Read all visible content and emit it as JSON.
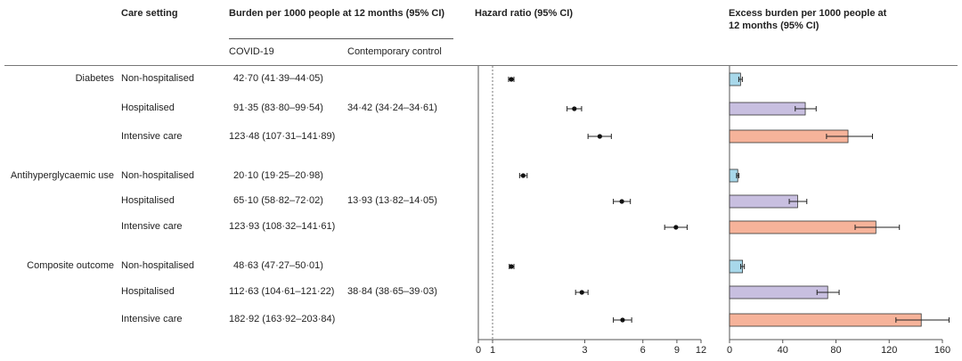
{
  "headers": {
    "care_setting": "Care setting",
    "burden": "Burden per 1000 people at  12 months (95% CI)",
    "covid": "COVID-19",
    "control": "Contemporary control",
    "hazard": "Hazard ratio (95% CI)",
    "excess_line1": "Excess burden per 1000 people at",
    "excess_line2": "12 months (95% CI)"
  },
  "groups": [
    {
      "name": "Diabetes",
      "control": "34·42 (34·24–34·61)",
      "rows": [
        {
          "setting": "Non-hospitalised",
          "covid": "42·70 (41·39–44·05)"
        },
        {
          "setting": "Hospitalised",
          "covid": "91·35 (83·80–99·54)"
        },
        {
          "setting": "Intensive care",
          "covid": "123·48 (107·31–141·89)"
        }
      ]
    },
    {
      "name": "Antihyperglycaemic use",
      "control": "13·93 (13·82–14·05)",
      "rows": [
        {
          "setting": "Non-hospitalised",
          "covid": "20·10 (19·25–20·98)"
        },
        {
          "setting": "Hospitalised",
          "covid": "65·10 (58·82–72·02)"
        },
        {
          "setting": "Intensive care",
          "covid": "123·93 (108·32–141·61)"
        }
      ]
    },
    {
      "name": "Composite outcome",
      "control": "38·84 (38·65–39·03)",
      "rows": [
        {
          "setting": "Non-hospitalised",
          "covid": "48·63 (47·27–50·01)"
        },
        {
          "setting": "Hospitalised",
          "covid": "112·63 (104·61–121·22)"
        },
        {
          "setting": "Intensive care",
          "covid": "182·92 (163·92–203·84)"
        }
      ]
    }
  ],
  "chart_data": [
    {
      "type": "scatter",
      "title": "Hazard ratio (95% CI)",
      "scale": "log",
      "reference_line": 1,
      "xticks": [
        0,
        1,
        3,
        6,
        9,
        12
      ],
      "points": [
        {
          "value": 1.25,
          "low": 1.21,
          "high": 1.29
        },
        {
          "value": 2.65,
          "low": 2.43,
          "high": 2.89
        },
        {
          "value": 3.59,
          "low": 3.12,
          "high": 4.12
        },
        {
          "value": 1.44,
          "low": 1.38,
          "high": 1.51
        },
        {
          "value": 4.67,
          "low": 4.22,
          "high": 5.17
        },
        {
          "value": 8.9,
          "low": 7.78,
          "high": 10.17
        },
        {
          "value": 1.25,
          "low": 1.22,
          "high": 1.29
        },
        {
          "value": 2.9,
          "low": 2.69,
          "high": 3.12
        },
        {
          "value": 4.71,
          "low": 4.22,
          "high": 5.25
        }
      ]
    },
    {
      "type": "bar",
      "orientation": "horizontal",
      "title": "Excess burden per 1000 people at 12 months (95% CI)",
      "xlim": [
        0,
        160
      ],
      "xticks": [
        0,
        40,
        80,
        120,
        160
      ],
      "colors": {
        "Non-hospitalised": "#a8d8ea",
        "Hospitalised": "#c8bfe0",
        "Intensive care": "#f6b39a"
      },
      "bars": [
        {
          "setting": "Non-hospitalised",
          "value": 8.28,
          "low": 6.97,
          "high": 9.63
        },
        {
          "setting": "Hospitalised",
          "value": 56.93,
          "low": 49.38,
          "high": 65.12
        },
        {
          "setting": "Intensive care",
          "value": 89.06,
          "low": 72.89,
          "high": 107.47
        },
        {
          "setting": "Non-hospitalised",
          "value": 6.17,
          "low": 5.32,
          "high": 7.05
        },
        {
          "setting": "Hospitalised",
          "value": 51.17,
          "low": 44.89,
          "high": 58.09
        },
        {
          "setting": "Intensive care",
          "value": 110.0,
          "low": 94.39,
          "high": 127.68
        },
        {
          "setting": "Non-hospitalised",
          "value": 9.79,
          "low": 8.43,
          "high": 11.17
        },
        {
          "setting": "Hospitalised",
          "value": 73.79,
          "low": 65.77,
          "high": 82.38
        },
        {
          "setting": "Intensive care",
          "value": 144.08,
          "low": 125.08,
          "high": 165.0
        }
      ]
    }
  ]
}
